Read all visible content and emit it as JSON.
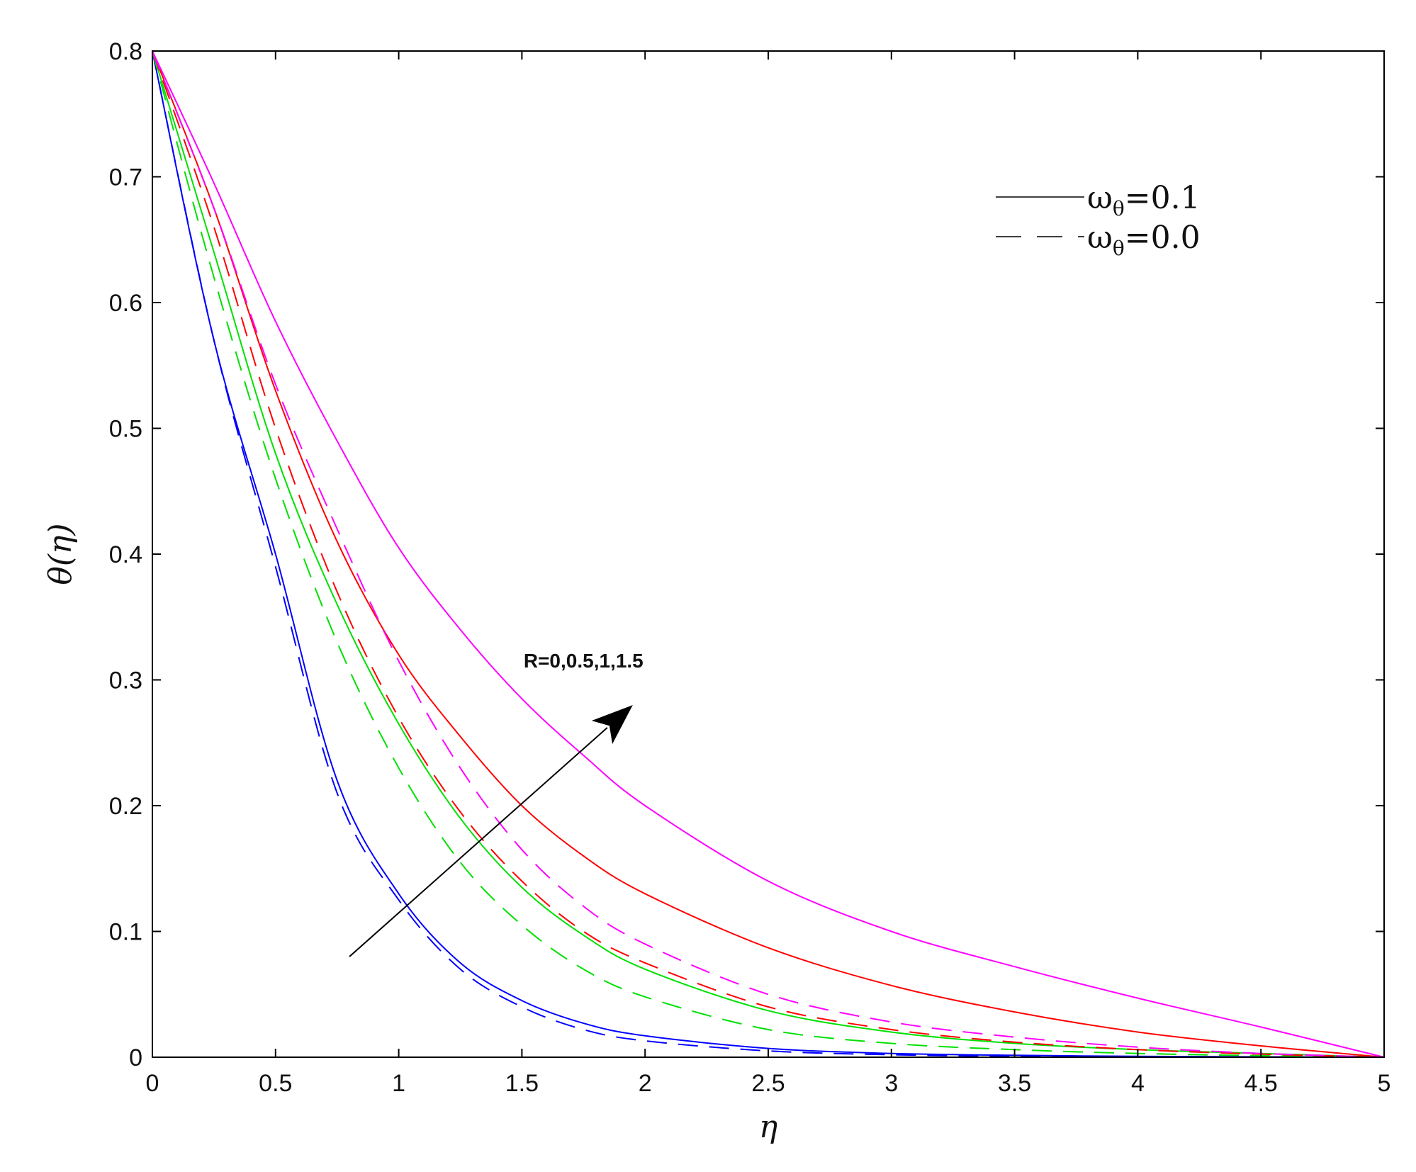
{
  "chart_data": {
    "type": "line",
    "title": "",
    "xlabel": "η",
    "ylabel": "θ(η)",
    "xlim": [
      0,
      5
    ],
    "ylim": [
      0,
      0.8
    ],
    "xticks": [
      "0",
      "0.5",
      "1",
      "1.5",
      "2",
      "2.5",
      "3",
      "3.5",
      "4",
      "4.5",
      "5"
    ],
    "yticks": [
      "0",
      "0.1",
      "0.2",
      "0.3",
      "0.4",
      "0.5",
      "0.6",
      "0.7",
      "0.8"
    ],
    "grid": false,
    "legend_position": "top-right",
    "legend": [
      {
        "label": "ωθ=0.1",
        "symbol": "ω",
        "subscript": "θ",
        "value": "=0.1",
        "style": "solid"
      },
      {
        "label": "ωθ=0.0",
        "symbol": "ω",
        "subscript": "θ",
        "value": "=0.0",
        "style": "dashed"
      }
    ],
    "annotation": {
      "text": "R=0,0.5,1,1.5",
      "arrow_from": [
        0.8,
        0.08
      ],
      "arrow_to": [
        1.95,
        0.28
      ],
      "text_at": [
        1.75,
        0.31
      ]
    },
    "x": [
      0,
      0.25,
      0.5,
      0.75,
      1,
      1.25,
      1.5,
      1.75,
      2,
      2.5,
      3,
      3.5,
      4,
      4.5,
      5
    ],
    "series": [
      {
        "group": "ωθ=0.1",
        "style": "solid",
        "color": "#0000ff",
        "values": [
          0.8,
          0.57,
          0.4,
          0.22,
          0.13,
          0.075,
          0.045,
          0.027,
          0.017,
          0.007,
          0.003,
          0.0015,
          0.0007,
          0.0003,
          0
        ]
      },
      {
        "group": "ωθ=0.1",
        "style": "solid",
        "color": "#00e000",
        "values": [
          0.8,
          0.64,
          0.48,
          0.36,
          0.265,
          0.19,
          0.135,
          0.097,
          0.07,
          0.037,
          0.02,
          0.011,
          0.006,
          0.003,
          0
        ]
      },
      {
        "group": "ωθ=0.1",
        "style": "solid",
        "color": "#ff0000",
        "values": [
          0.8,
          0.675,
          0.53,
          0.41,
          0.32,
          0.255,
          0.2,
          0.16,
          0.13,
          0.087,
          0.057,
          0.036,
          0.02,
          0.009,
          0
        ]
      },
      {
        "group": "ωθ=0.1",
        "style": "solid",
        "color": "#ff00ff",
        "values": [
          0.8,
          0.695,
          0.585,
          0.49,
          0.405,
          0.34,
          0.285,
          0.24,
          0.2,
          0.14,
          0.1,
          0.072,
          0.047,
          0.024,
          0
        ]
      },
      {
        "group": "ωθ=0.0",
        "style": "dashed",
        "color": "#0000ff",
        "values": [
          0.8,
          0.57,
          0.39,
          0.21,
          0.125,
          0.07,
          0.04,
          0.022,
          0.013,
          0.005,
          0.002,
          0.0008,
          0.0003,
          0.0001,
          0
        ]
      },
      {
        "group": "ωθ=0.0",
        "style": "dashed",
        "color": "#00e000",
        "values": [
          0.8,
          0.62,
          0.46,
          0.33,
          0.23,
          0.155,
          0.105,
          0.07,
          0.048,
          0.022,
          0.011,
          0.006,
          0.003,
          0.0012,
          0
        ]
      },
      {
        "group": "ωθ=0.0",
        "style": "dashed",
        "color": "#ff0000",
        "values": [
          0.8,
          0.66,
          0.5,
          0.37,
          0.27,
          0.195,
          0.14,
          0.1,
          0.075,
          0.04,
          0.022,
          0.012,
          0.006,
          0.0025,
          0
        ]
      },
      {
        "group": "ωθ=0.0",
        "style": "dashed",
        "color": "#ff00ff",
        "values": [
          0.8,
          0.675,
          0.535,
          0.42,
          0.315,
          0.23,
          0.165,
          0.12,
          0.09,
          0.05,
          0.028,
          0.016,
          0.008,
          0.003,
          0
        ]
      }
    ]
  }
}
